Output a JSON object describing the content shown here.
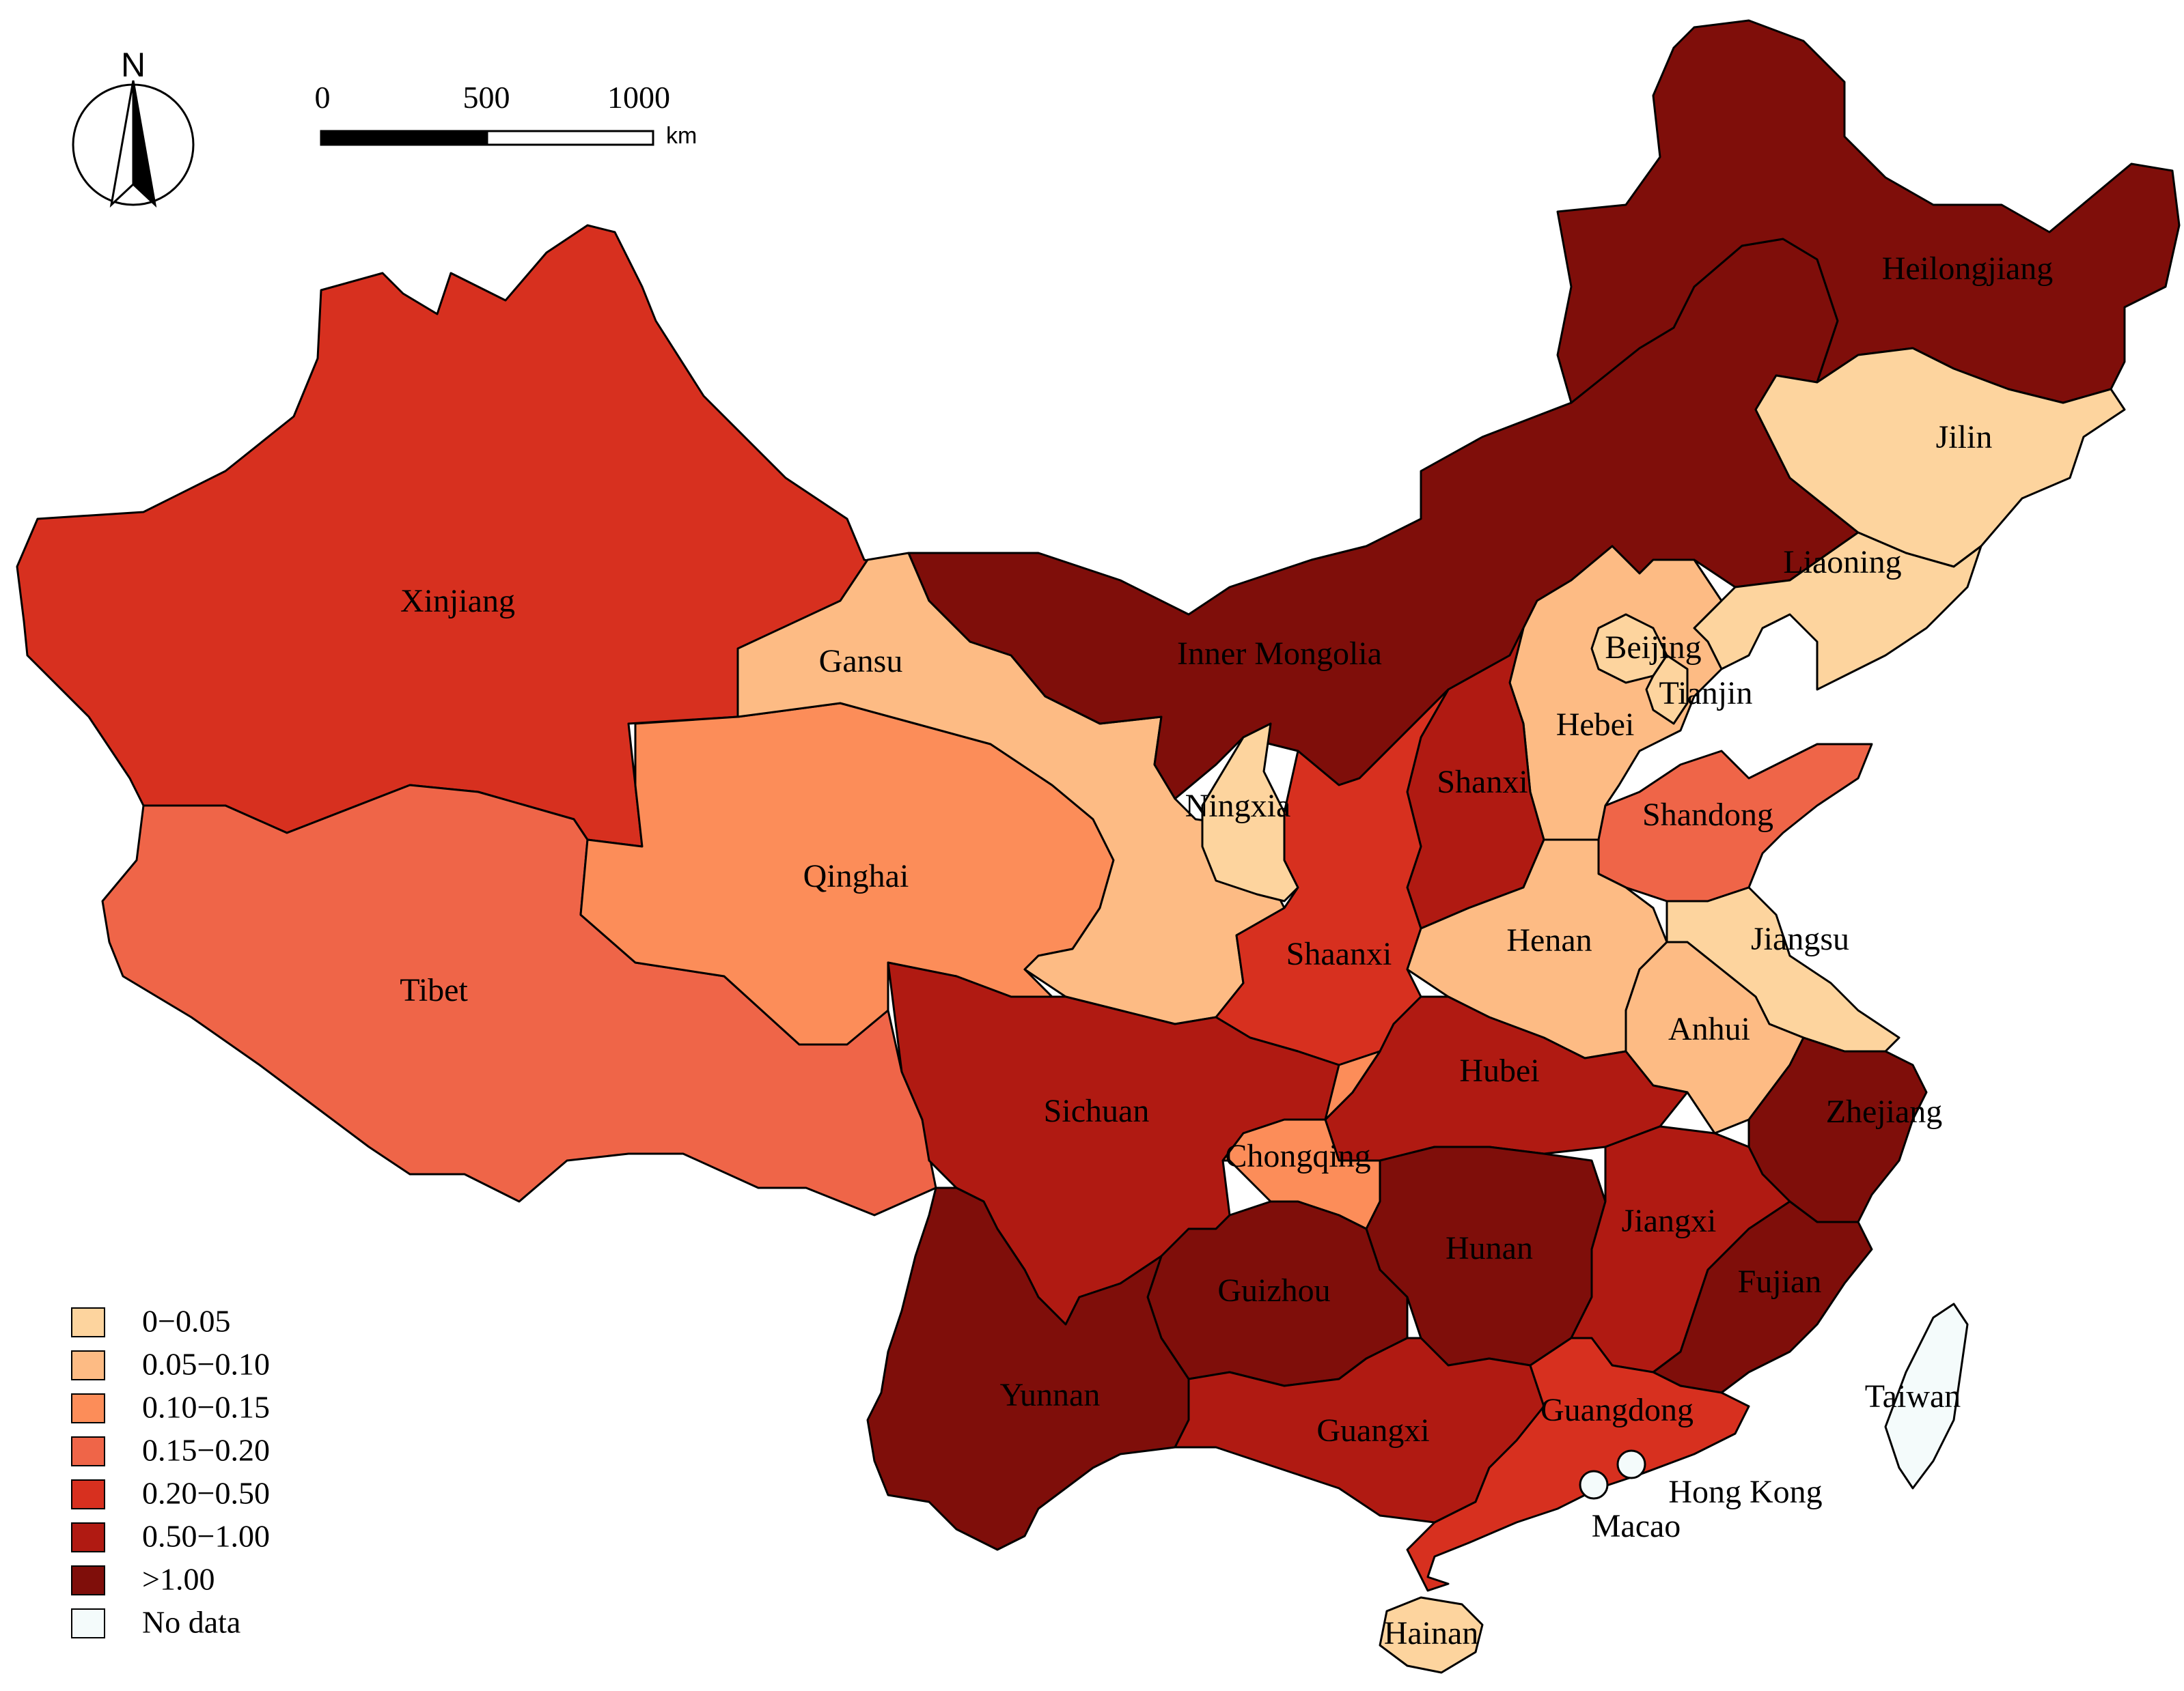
{
  "legend": {
    "items": [
      {
        "label": "0−0.05",
        "color": "#fdd49e"
      },
      {
        "label": "0.05−0.10",
        "color": "#fdbb84"
      },
      {
        "label": "0.10−0.15",
        "color": "#fc8d59"
      },
      {
        "label": "0.15−0.20",
        "color": "#ef6548"
      },
      {
        "label": "0.20−0.50",
        "color": "#d7301f"
      },
      {
        "label": "0.50−1.00",
        "color": "#b01a12"
      },
      {
        "label": ">1.00",
        "color": "#7f0e0a"
      },
      {
        "label": "No data",
        "color": "#f4fbfb"
      }
    ]
  },
  "scale_bar": {
    "ticks": [
      "0",
      "500",
      "1000"
    ],
    "unit": "km"
  },
  "north_arrow": {
    "label": "N"
  },
  "regions": [
    {
      "id": "xinjiang",
      "name": "Xinjiang",
      "class": 4
    },
    {
      "id": "tibet",
      "name": "Tibet",
      "class": 3
    },
    {
      "id": "qinghai",
      "name": "Qinghai",
      "class": 2
    },
    {
      "id": "gansu",
      "name": "Gansu",
      "class": 1
    },
    {
      "id": "inner-mongolia",
      "name": "Inner Mongolia",
      "class": 6
    },
    {
      "id": "heilongjiang",
      "name": "Heilongjiang",
      "class": 6
    },
    {
      "id": "jilin",
      "name": "Jilin",
      "class": 0
    },
    {
      "id": "liaoning",
      "name": "Liaoning",
      "class": 0
    },
    {
      "id": "beijing",
      "name": "Beijing",
      "class": 0
    },
    {
      "id": "tianjin",
      "name": "Tianjin",
      "class": 0
    },
    {
      "id": "hebei",
      "name": "Hebei",
      "class": 1
    },
    {
      "id": "shanxi",
      "name": "Shanxi",
      "class": 5
    },
    {
      "id": "shandong",
      "name": "Shandong",
      "class": 3
    },
    {
      "id": "ningxia",
      "name": "Ningxia",
      "class": 0
    },
    {
      "id": "shaanxi",
      "name": "Shaanxi",
      "class": 4
    },
    {
      "id": "henan",
      "name": "Henan",
      "class": 1
    },
    {
      "id": "jiangsu",
      "name": "Jiangsu",
      "class": 0
    },
    {
      "id": "anhui",
      "name": "Anhui",
      "class": 1
    },
    {
      "id": "hubei",
      "name": "Hubei",
      "class": 5
    },
    {
      "id": "sichuan",
      "name": "Sichuan",
      "class": 5
    },
    {
      "id": "chongqing",
      "name": "Chongqing",
      "class": 2
    },
    {
      "id": "zhejiang",
      "name": "Zhejiang",
      "class": 6
    },
    {
      "id": "hunan",
      "name": "Hunan",
      "class": 6
    },
    {
      "id": "jiangxi",
      "name": "Jiangxi",
      "class": 5
    },
    {
      "id": "fujian",
      "name": "Fujian",
      "class": 6
    },
    {
      "id": "guizhou",
      "name": "Guizhou",
      "class": 6
    },
    {
      "id": "yunnan",
      "name": "Yunnan",
      "class": 6
    },
    {
      "id": "guangxi",
      "name": "Guangxi",
      "class": 5
    },
    {
      "id": "guangdong",
      "name": "Guangdong",
      "class": 4
    },
    {
      "id": "hainan",
      "name": "Hainan",
      "class": 0
    },
    {
      "id": "taiwan",
      "name": "Taiwan",
      "class": 7
    },
    {
      "id": "hong-kong",
      "name": "Hong Kong",
      "class": 7
    },
    {
      "id": "macao",
      "name": "Macao",
      "class": 7
    }
  ]
}
